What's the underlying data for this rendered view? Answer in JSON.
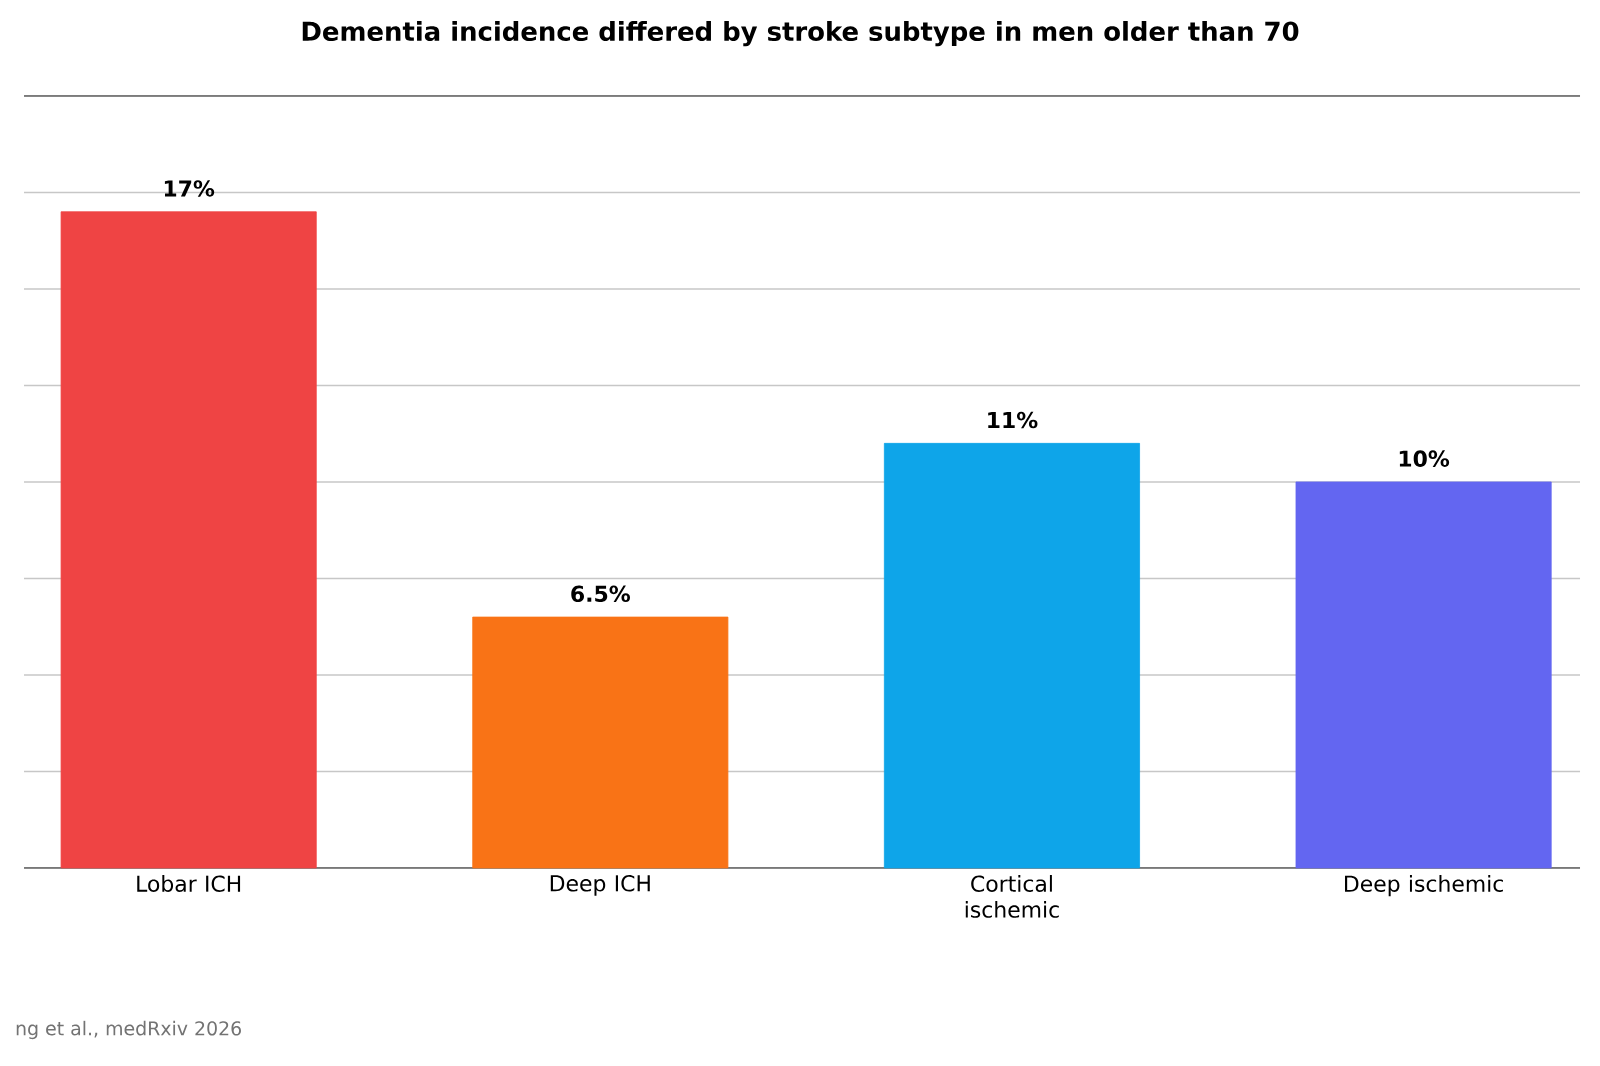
{
  "chart_data": {
    "type": "bar",
    "title": "Dementia incidence differed by stroke subtype in men older than 70",
    "categories": [
      "Lobar ICH",
      "Deep ICH",
      "Cortical ischemic",
      "Deep ischemic"
    ],
    "values": [
      17,
      6.5,
      11,
      10
    ],
    "colors": [
      "#ef4444",
      "#f97316",
      "#0ea5e9",
      "#6366f1"
    ],
    "value_labels": [
      "17%",
      "6.5%",
      "11%",
      "10%"
    ],
    "ylim": [
      0,
      20
    ],
    "yticks": [
      {
        "value": 0,
        "label": null
      },
      {
        "value": 2.5,
        "label": null
      },
      {
        "value": 5,
        "label": null
      },
      {
        "value": 7.5,
        "label": null
      },
      {
        "value": 10,
        "label": null
      },
      {
        "value": 12.5,
        "label": null
      },
      {
        "value": 15,
        "label": null
      },
      {
        "value": 17.5,
        "label": null
      },
      {
        "value": 20,
        "label": null
      }
    ],
    "tick_labels": "x",
    "grid": "y",
    "annotations": [
      "ng et al., medRxiv 2026"
    ]
  }
}
